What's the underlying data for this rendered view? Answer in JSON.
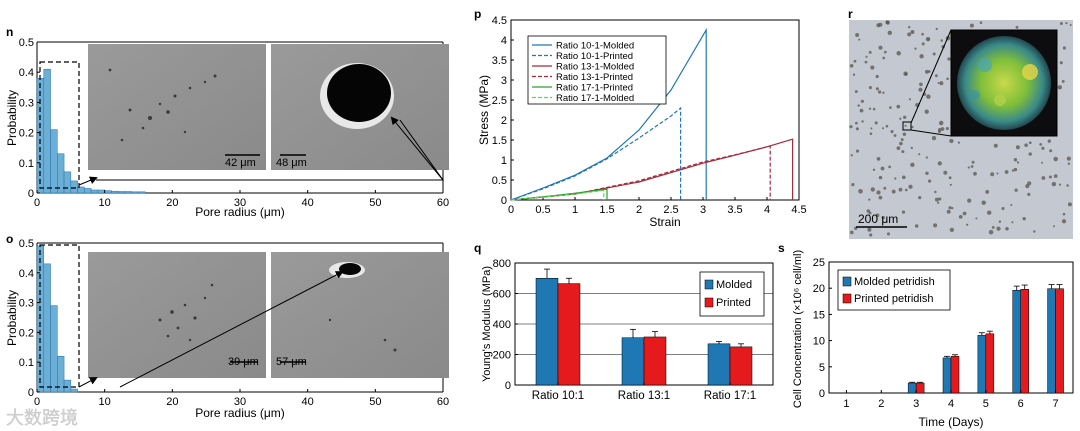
{
  "panels": {
    "n": "n",
    "o": "o",
    "p": "p",
    "q": "q",
    "r": "r",
    "s": "s"
  },
  "sem": {
    "n_left_scale": "42 μm",
    "n_right_scale": "48 μm",
    "o_left_scale": "39 μm",
    "o_right_scale": "57 μm",
    "r_scale": "200 μm"
  },
  "watermark": "大数跨境",
  "colors": {
    "blue": "#1f77b4",
    "red": "#e41a1c",
    "dark_red": "#a52a3c",
    "green": "#2ca02c",
    "light_green": "#5bd85b",
    "hist": "#6baed6"
  },
  "chart_data": [
    {
      "id": "n",
      "type": "bar",
      "title": "",
      "xlabel": "Pore radius (μm)",
      "ylabel": "Probability",
      "xlim": [
        0,
        60
      ],
      "ylim": [
        0,
        0.5
      ],
      "xticks": [
        "0",
        "10",
        "20",
        "30",
        "40",
        "50",
        "60"
      ],
      "yticks": [
        "0",
        "0.1",
        "0.2",
        "0.3",
        "0.4",
        "0.5"
      ],
      "bin_width": 1,
      "bins_x": [
        0,
        1,
        2,
        3,
        4,
        5,
        6,
        7,
        8,
        9,
        10,
        11,
        12,
        13,
        14,
        15
      ],
      "values": [
        0.38,
        0.41,
        0.21,
        0.13,
        0.07,
        0.04,
        0.02,
        0.015,
        0.01,
        0.01,
        0.008,
        0.006,
        0.005,
        0.005,
        0.004,
        0.004
      ]
    },
    {
      "id": "o",
      "type": "bar",
      "title": "",
      "xlabel": "Pore radius (μm)",
      "ylabel": "Probability",
      "xlim": [
        0,
        60
      ],
      "ylim": [
        0,
        0.5
      ],
      "xticks": [
        "0",
        "10",
        "20",
        "30",
        "40",
        "50",
        "60"
      ],
      "yticks": [
        "0",
        "0.1",
        "0.2",
        "0.3",
        "0.4",
        "0.5"
      ],
      "bin_width": 1,
      "bins_x": [
        0,
        1,
        2,
        3,
        4,
        5
      ],
      "values": [
        0.49,
        0.43,
        0.29,
        0.12,
        0.04,
        0.01
      ]
    },
    {
      "id": "p",
      "type": "line",
      "xlabel": "Strain",
      "ylabel": "Stress (MPa)",
      "xlim": [
        0,
        4.5
      ],
      "ylim": [
        0,
        4.5
      ],
      "xticks": [
        "0",
        "0.5",
        "1",
        "1.5",
        "2",
        "2.5",
        "3",
        "3.5",
        "4",
        "4.5"
      ],
      "yticks": [
        "0",
        "0.5",
        "1",
        "1.5",
        "2",
        "2.5",
        "3",
        "3.5",
        "4",
        "4.5"
      ],
      "series": [
        {
          "name": "Ratio 10-1-Molded",
          "color": "#1f77b4",
          "dash": false,
          "x": [
            0,
            0.5,
            1,
            1.5,
            2,
            2.5,
            3.05,
            3.05
          ],
          "y": [
            0,
            0.3,
            0.62,
            1.05,
            1.75,
            2.75,
            4.25,
            0
          ]
        },
        {
          "name": "Ratio 10-1-Printed",
          "color": "#1f77b4",
          "dash": true,
          "x": [
            0,
            0.5,
            1,
            1.5,
            2,
            2.5,
            2.65,
            2.65
          ],
          "y": [
            0,
            0.28,
            0.6,
            1.03,
            1.55,
            2.1,
            2.3,
            0
          ]
        },
        {
          "name": "Ratio 13-1-Molded",
          "color": "#a52a3c",
          "dash": false,
          "x": [
            0,
            1,
            2,
            3,
            3.5,
            4,
            4.4,
            4.4
          ],
          "y": [
            0,
            0.15,
            0.45,
            0.92,
            1.12,
            1.33,
            1.52,
            0
          ]
        },
        {
          "name": "Ratio 13-1-Printed",
          "color": "#a52a3c",
          "dash": true,
          "x": [
            0,
            1,
            2,
            3,
            3.5,
            4.05,
            4.05
          ],
          "y": [
            0,
            0.15,
            0.48,
            0.95,
            1.13,
            1.35,
            0
          ]
        },
        {
          "name": "Ratio 17-1-Printed",
          "color": "#2ca02c",
          "dash": false,
          "x": [
            0,
            0.5,
            1,
            1.5,
            1.5
          ],
          "y": [
            0,
            0.08,
            0.17,
            0.27,
            0
          ]
        },
        {
          "name": "Ratio 17-1-Molded",
          "color": "#5bd85b",
          "dash": true,
          "x": [
            0,
            0.5,
            1,
            1.45,
            1.45
          ],
          "y": [
            0,
            0.07,
            0.15,
            0.24,
            0
          ]
        }
      ]
    },
    {
      "id": "q",
      "type": "bar",
      "xlabel": "",
      "ylabel": "Young's Modulus (MPa)",
      "ylim": [
        0,
        800
      ],
      "yticks": [
        "0",
        "200",
        "400",
        "600",
        "800"
      ],
      "categories": [
        "Ratio 10:1",
        "Ratio 13:1",
        "Ratio 17:1"
      ],
      "series": [
        {
          "name": "Molded",
          "color": "#1f77b4",
          "values": [
            700,
            310,
            270
          ],
          "errors": [
            60,
            55,
            15
          ]
        },
        {
          "name": "Printed",
          "color": "#e41a1c",
          "values": [
            665,
            315,
            250
          ],
          "errors": [
            35,
            35,
            20
          ]
        }
      ]
    },
    {
      "id": "s",
      "type": "bar",
      "xlabel": "Time (Days)",
      "ylabel": "Cell Concentration (×10⁶ cell/ml)",
      "ylim": [
        0,
        25
      ],
      "yticks": [
        "0",
        "5",
        "10",
        "15",
        "20",
        "25"
      ],
      "categories": [
        "1",
        "2",
        "3",
        "4",
        "5",
        "6",
        "7"
      ],
      "series": [
        {
          "name": "Molded petridish",
          "color": "#1f77b4",
          "values": [
            0,
            0,
            1.9,
            6.7,
            11,
            19.6,
            19.9
          ],
          "errors": [
            0,
            0,
            0.15,
            0.3,
            0.5,
            0.8,
            0.8
          ]
        },
        {
          "name": "Printed petridish",
          "color": "#e41a1c",
          "values": [
            0,
            0,
            1.9,
            7.0,
            11.3,
            19.8,
            19.9
          ],
          "errors": [
            0,
            0,
            0.15,
            0.3,
            0.5,
            0.8,
            0.8
          ]
        }
      ]
    }
  ]
}
